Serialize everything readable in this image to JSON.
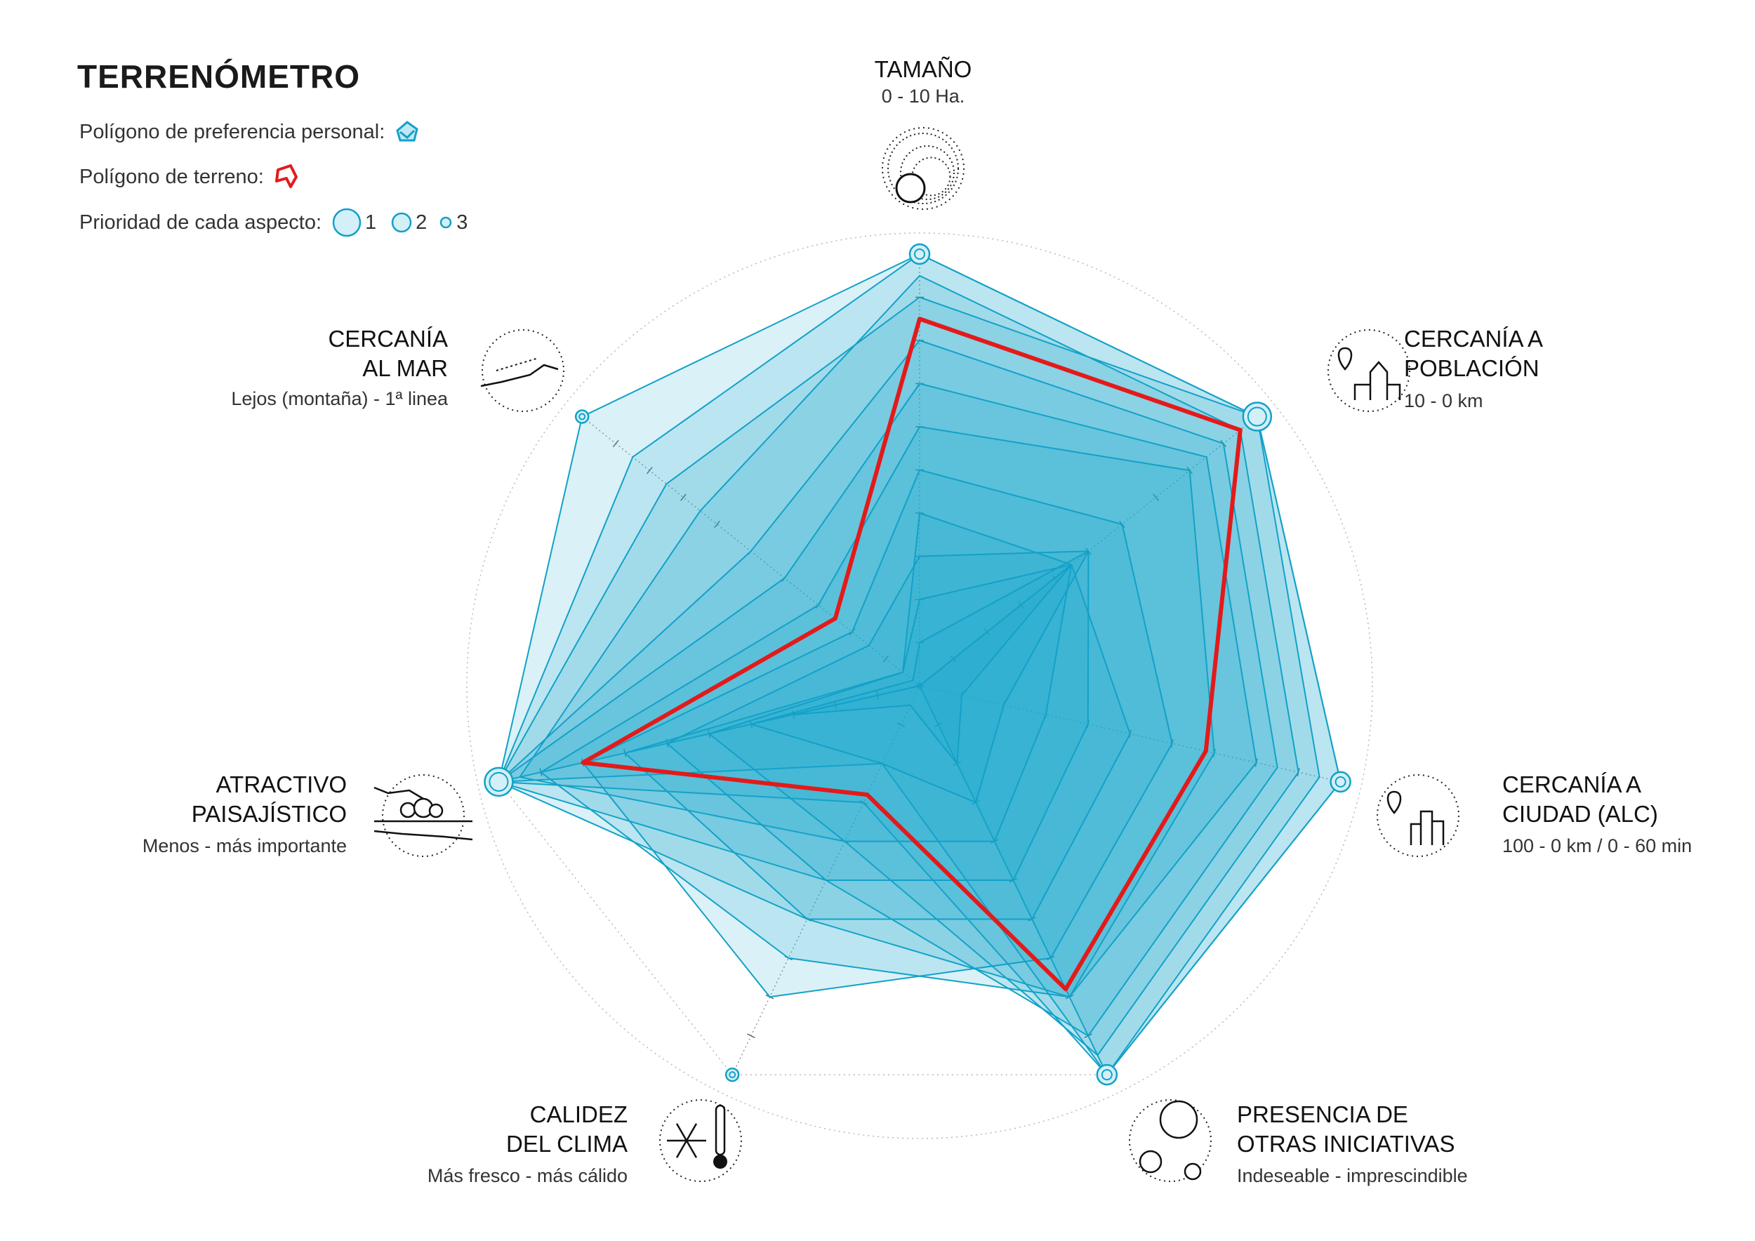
{
  "title": "TERRENÓMETRO",
  "legend": {
    "preference_label": "Polígono de preferencia personal:",
    "terrain_label": "Polígono de terreno:",
    "priority_label": "Prioridad de cada aspecto:",
    "priority_levels": [
      "1",
      "2",
      "3"
    ]
  },
  "colors": {
    "preference_fill": "#1aa6cf",
    "preference_stroke": "#12a1c8",
    "terrain": "#e31a1a",
    "grid": "#b8b8b8"
  },
  "icons": {
    "tamano": "concentric-circles-icon",
    "cercania_poblacion": "village-pin-icon",
    "cercania_ciudad": "city-pin-icon",
    "presencia": "network-abc-icon",
    "calidez": "snowflake-thermometer-icon",
    "atractivo": "landscape-trees-icon",
    "mar": "coast-distance-icon"
  },
  "axes": [
    {
      "id": "tamano",
      "title": "TAMAÑO",
      "subtitle": "0 - 10 Ha.",
      "priority": 2
    },
    {
      "id": "cercania_poblacion",
      "title": "CERCANÍA A\nPOBLACIÓN",
      "subtitle": "10 - 0 km",
      "priority": 1
    },
    {
      "id": "cercania_ciudad",
      "title": "CERCANÍA A\nCIUDAD (ALC)",
      "subtitle": "100 - 0 km / 0 - 60 min",
      "priority": 2
    },
    {
      "id": "presencia",
      "title": "PRESENCIA DE\nOTRAS INICIATIVAS",
      "subtitle": "Indeseable - imprescindible",
      "priority": 2
    },
    {
      "id": "calidez",
      "title": "CALIDEZ\nDEL CLIMA",
      "subtitle": "Más fresco - más cálido",
      "priority": 3
    },
    {
      "id": "atractivo",
      "title": "ATRACTIVO\nPAISAJÍSTICO",
      "subtitle": "Menos - más importante",
      "priority": 1
    },
    {
      "id": "mar",
      "title": "CERCANÍA\nAL MAR",
      "subtitle": "Lejos (montaña) - 1ª linea",
      "priority": 3
    }
  ],
  "chart_data": {
    "type": "radar",
    "axes": [
      "TAMAÑO",
      "CERCANÍA A POBLACIÓN",
      "CERCANÍA A CIUDAD (ALC)",
      "PRESENCIA DE OTRAS INICIATIVAS",
      "CALIDEZ DEL CLIMA",
      "ATRACTIVO PAISAJÍSTICO",
      "CERCANÍA AL MAR"
    ],
    "range": [
      0,
      10
    ],
    "rings": [
      2,
      4,
      6,
      8,
      10
    ],
    "preference_polygons": [
      [
        10,
        10,
        10,
        10,
        0,
        10,
        10
      ],
      [
        10,
        10,
        10,
        10,
        2,
        10,
        8.5
      ],
      [
        9,
        10,
        9.5,
        10,
        3,
        10,
        7.5
      ],
      [
        9.5,
        9.5,
        9,
        9.5,
        4,
        9.5,
        6.5
      ],
      [
        8,
        9,
        8.5,
        9,
        5,
        10,
        5
      ],
      [
        7,
        8.5,
        8,
        8,
        6,
        10,
        4
      ],
      [
        6,
        8,
        7,
        8,
        7,
        9,
        3
      ],
      [
        5,
        6,
        6,
        7,
        8,
        8,
        2
      ],
      [
        4,
        4.5,
        5,
        6,
        6,
        7,
        0.5
      ],
      [
        3,
        5,
        4,
        5,
        5,
        6,
        1.5
      ],
      [
        2,
        4.5,
        3,
        4,
        4,
        5,
        0.5
      ],
      [
        1,
        5,
        2,
        3,
        2,
        4,
        0.2
      ],
      [
        0,
        4.5,
        1,
        2,
        0.5,
        3,
        0
      ]
    ],
    "terrain_polygon": [
      8.5,
      9.5,
      6.8,
      7.8,
      2.8,
      8,
      2.5
    ]
  }
}
